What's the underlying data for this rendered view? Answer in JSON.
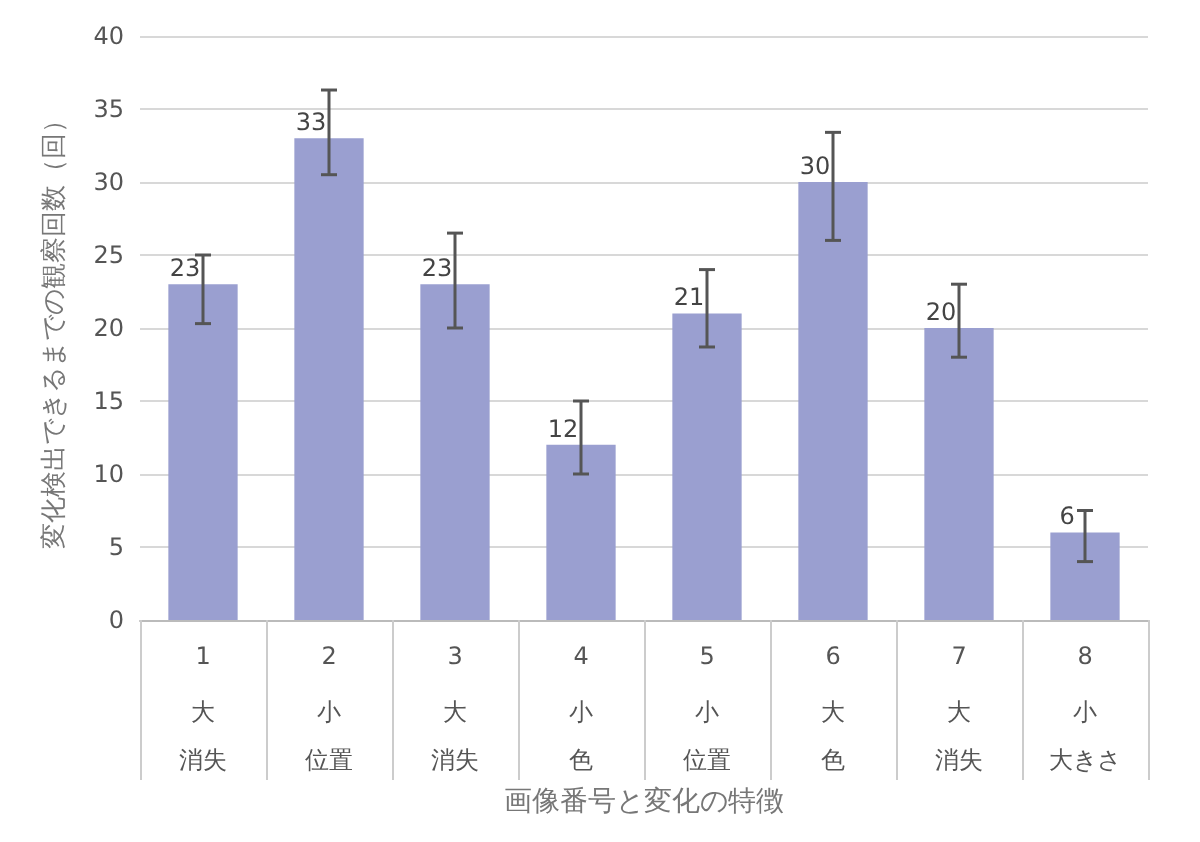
{
  "chart_data": {
    "type": "bar",
    "categories": [
      "1",
      "2",
      "3",
      "4",
      "5",
      "6",
      "7",
      "8"
    ],
    "annotations": [
      "大",
      "消失",
      "小",
      "位置",
      "大",
      "消失",
      "小",
      "色",
      "小",
      "位置",
      "大",
      "色",
      "大",
      "消失",
      "小",
      "大きさ"
    ],
    "values": [
      23,
      33,
      23,
      12,
      21,
      30,
      20,
      6
    ],
    "errors": [
      [
        20.3,
        25
      ],
      [
        30.5,
        36.3
      ],
      [
        20,
        26.5
      ],
      [
        10,
        15
      ],
      [
        18.7,
        24
      ],
      [
        26,
        33.4
      ],
      [
        18,
        23
      ],
      [
        4,
        7.5
      ]
    ],
    "color": "#9a9fd0",
    "xlabel": "画像番号と変化の特徴",
    "ylabel": "変化検出できるまでの観察回数（回）",
    "ylim": [
      0,
      40
    ],
    "yticks": [
      0,
      5,
      10,
      15,
      20,
      25,
      30,
      35,
      40
    ],
    "grid": "y",
    "data_labels": true
  }
}
